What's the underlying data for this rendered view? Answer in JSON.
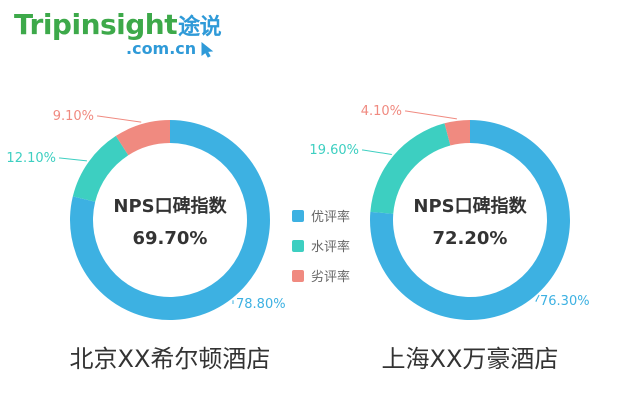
{
  "logo": {
    "main": "Tripinsight",
    "cn": "途说",
    "domain": ".com.cn"
  },
  "colors": {
    "good": "#3db1e2",
    "neutral": "#3dcfc1",
    "bad": "#f08a80",
    "text": "#333333"
  },
  "legend": [
    {
      "label": "优评率",
      "color": "#3db1e2"
    },
    {
      "label": "水评率",
      "color": "#3dcfc1"
    },
    {
      "label": "劣评率",
      "color": "#f08a80"
    }
  ],
  "chart_data": [
    {
      "type": "pie",
      "hole": "donut",
      "center_title": "NPS口碑指数",
      "center_value": "69.70%",
      "caption": "北京XX希尔顿酒店",
      "categories": [
        "优评率",
        "水评率",
        "劣评率"
      ],
      "values": [
        78.8,
        12.1,
        9.1
      ],
      "value_labels": [
        "78.80%",
        "12.10%",
        "9.10%"
      ],
      "colors": [
        "#3db1e2",
        "#3dcfc1",
        "#f08a80"
      ],
      "legend_position": "center"
    },
    {
      "type": "pie",
      "hole": "donut",
      "center_title": "NPS口碑指数",
      "center_value": "72.20%",
      "caption": "上海XX万豪酒店",
      "categories": [
        "优评率",
        "水评率",
        "劣评率"
      ],
      "values": [
        76.3,
        19.6,
        4.1
      ],
      "value_labels": [
        "76.30%",
        "19.60%",
        "4.10%"
      ],
      "colors": [
        "#3db1e2",
        "#3dcfc1",
        "#f08a80"
      ],
      "legend_position": "center"
    }
  ]
}
